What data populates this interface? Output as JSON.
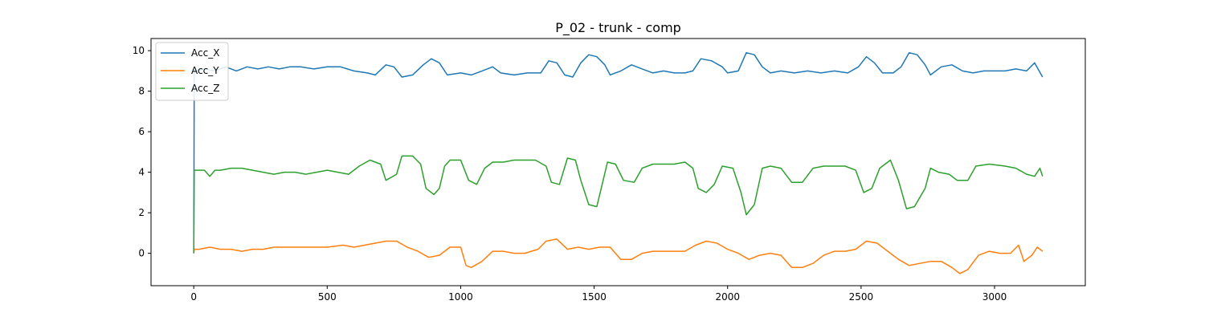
{
  "chart_data": {
    "type": "line",
    "title": "P_02 - trunk - comp",
    "xlabel": "",
    "ylabel": "",
    "xlim": [
      -160,
      3340
    ],
    "ylim": [
      -1.6,
      10.6
    ],
    "x_ticks": [
      0,
      500,
      1000,
      1500,
      2000,
      2500,
      3000
    ],
    "y_ticks": [
      0,
      2,
      4,
      6,
      8,
      10
    ],
    "grid": false,
    "legend": "top-left",
    "series": [
      {
        "name": "Acc_X",
        "color": "#1f77b4",
        "points": [
          [
            0,
            0.0
          ],
          [
            2,
            9.1
          ],
          [
            10,
            9.0
          ],
          [
            40,
            9.1
          ],
          [
            80,
            9.0
          ],
          [
            120,
            9.2
          ],
          [
            160,
            9.0
          ],
          [
            200,
            9.2
          ],
          [
            240,
            9.1
          ],
          [
            280,
            9.2
          ],
          [
            320,
            9.1
          ],
          [
            360,
            9.2
          ],
          [
            400,
            9.2
          ],
          [
            450,
            9.1
          ],
          [
            500,
            9.2
          ],
          [
            550,
            9.2
          ],
          [
            600,
            9.0
          ],
          [
            650,
            8.9
          ],
          [
            680,
            8.8
          ],
          [
            720,
            9.3
          ],
          [
            750,
            9.2
          ],
          [
            780,
            8.7
          ],
          [
            820,
            8.8
          ],
          [
            860,
            9.3
          ],
          [
            890,
            9.6
          ],
          [
            920,
            9.4
          ],
          [
            950,
            8.8
          ],
          [
            1000,
            8.9
          ],
          [
            1040,
            8.8
          ],
          [
            1080,
            9.0
          ],
          [
            1120,
            9.2
          ],
          [
            1150,
            8.9
          ],
          [
            1200,
            8.8
          ],
          [
            1250,
            8.9
          ],
          [
            1300,
            8.9
          ],
          [
            1330,
            9.5
          ],
          [
            1360,
            9.4
          ],
          [
            1390,
            8.8
          ],
          [
            1420,
            8.7
          ],
          [
            1450,
            9.4
          ],
          [
            1480,
            9.8
          ],
          [
            1510,
            9.7
          ],
          [
            1540,
            9.3
          ],
          [
            1560,
            8.8
          ],
          [
            1600,
            9.0
          ],
          [
            1640,
            9.3
          ],
          [
            1680,
            9.1
          ],
          [
            1720,
            8.9
          ],
          [
            1760,
            9.0
          ],
          [
            1800,
            8.9
          ],
          [
            1840,
            8.9
          ],
          [
            1870,
            9.0
          ],
          [
            1900,
            9.6
          ],
          [
            1940,
            9.5
          ],
          [
            1980,
            9.2
          ],
          [
            2000,
            8.9
          ],
          [
            2040,
            9.0
          ],
          [
            2070,
            9.9
          ],
          [
            2100,
            9.8
          ],
          [
            2130,
            9.2
          ],
          [
            2160,
            8.9
          ],
          [
            2200,
            9.0
          ],
          [
            2250,
            8.9
          ],
          [
            2300,
            9.0
          ],
          [
            2350,
            8.9
          ],
          [
            2400,
            9.0
          ],
          [
            2450,
            8.9
          ],
          [
            2490,
            9.2
          ],
          [
            2520,
            9.7
          ],
          [
            2550,
            9.4
          ],
          [
            2580,
            8.9
          ],
          [
            2620,
            8.9
          ],
          [
            2650,
            9.2
          ],
          [
            2680,
            9.9
          ],
          [
            2710,
            9.8
          ],
          [
            2740,
            9.3
          ],
          [
            2760,
            8.8
          ],
          [
            2800,
            9.2
          ],
          [
            2840,
            9.3
          ],
          [
            2880,
            9.0
          ],
          [
            2920,
            8.9
          ],
          [
            2960,
            9.0
          ],
          [
            3000,
            9.0
          ],
          [
            3040,
            9.0
          ],
          [
            3080,
            9.1
          ],
          [
            3120,
            9.0
          ],
          [
            3150,
            9.4
          ],
          [
            3180,
            8.7
          ]
        ]
      },
      {
        "name": "Acc_Y",
        "color": "#ff7f0e",
        "points": [
          [
            0,
            0.0
          ],
          [
            2,
            0.2
          ],
          [
            20,
            0.2
          ],
          [
            60,
            0.3
          ],
          [
            100,
            0.2
          ],
          [
            140,
            0.2
          ],
          [
            180,
            0.1
          ],
          [
            220,
            0.2
          ],
          [
            260,
            0.2
          ],
          [
            300,
            0.3
          ],
          [
            340,
            0.3
          ],
          [
            400,
            0.3
          ],
          [
            450,
            0.3
          ],
          [
            500,
            0.3
          ],
          [
            560,
            0.4
          ],
          [
            600,
            0.3
          ],
          [
            640,
            0.4
          ],
          [
            680,
            0.5
          ],
          [
            720,
            0.6
          ],
          [
            760,
            0.6
          ],
          [
            800,
            0.3
          ],
          [
            840,
            0.1
          ],
          [
            880,
            -0.2
          ],
          [
            920,
            -0.1
          ],
          [
            960,
            0.3
          ],
          [
            1000,
            0.3
          ],
          [
            1020,
            -0.6
          ],
          [
            1040,
            -0.7
          ],
          [
            1080,
            -0.4
          ],
          [
            1120,
            0.1
          ],
          [
            1160,
            0.1
          ],
          [
            1200,
            0.0
          ],
          [
            1240,
            0.0
          ],
          [
            1290,
            0.2
          ],
          [
            1320,
            0.6
          ],
          [
            1360,
            0.7
          ],
          [
            1400,
            0.2
          ],
          [
            1440,
            0.3
          ],
          [
            1480,
            0.2
          ],
          [
            1520,
            0.3
          ],
          [
            1560,
            0.3
          ],
          [
            1600,
            -0.3
          ],
          [
            1640,
            -0.3
          ],
          [
            1680,
            0.0
          ],
          [
            1720,
            0.1
          ],
          [
            1760,
            0.1
          ],
          [
            1800,
            0.1
          ],
          [
            1840,
            0.1
          ],
          [
            1880,
            0.4
          ],
          [
            1920,
            0.6
          ],
          [
            1960,
            0.5
          ],
          [
            2000,
            0.2
          ],
          [
            2040,
            0.0
          ],
          [
            2080,
            -0.3
          ],
          [
            2120,
            -0.1
          ],
          [
            2160,
            0.0
          ],
          [
            2200,
            -0.1
          ],
          [
            2240,
            -0.7
          ],
          [
            2280,
            -0.7
          ],
          [
            2320,
            -0.5
          ],
          [
            2360,
            -0.1
          ],
          [
            2400,
            0.1
          ],
          [
            2440,
            0.1
          ],
          [
            2480,
            0.2
          ],
          [
            2520,
            0.6
          ],
          [
            2560,
            0.5
          ],
          [
            2600,
            0.1
          ],
          [
            2640,
            -0.3
          ],
          [
            2680,
            -0.6
          ],
          [
            2720,
            -0.5
          ],
          [
            2760,
            -0.4
          ],
          [
            2800,
            -0.4
          ],
          [
            2840,
            -0.7
          ],
          [
            2870,
            -1.0
          ],
          [
            2900,
            -0.8
          ],
          [
            2940,
            -0.1
          ],
          [
            2980,
            0.1
          ],
          [
            3020,
            0.0
          ],
          [
            3060,
            0.0
          ],
          [
            3090,
            0.4
          ],
          [
            3110,
            -0.4
          ],
          [
            3140,
            -0.1
          ],
          [
            3160,
            0.3
          ],
          [
            3180,
            0.1
          ]
        ]
      },
      {
        "name": "Acc_Z",
        "color": "#2ca02c",
        "points": [
          [
            0,
            0.0
          ],
          [
            2,
            4.1
          ],
          [
            40,
            4.1
          ],
          [
            60,
            3.8
          ],
          [
            80,
            4.1
          ],
          [
            100,
            4.1
          ],
          [
            140,
            4.2
          ],
          [
            180,
            4.2
          ],
          [
            220,
            4.1
          ],
          [
            260,
            4.0
          ],
          [
            300,
            3.9
          ],
          [
            340,
            4.0
          ],
          [
            380,
            4.0
          ],
          [
            420,
            3.9
          ],
          [
            460,
            4.0
          ],
          [
            500,
            4.1
          ],
          [
            540,
            4.0
          ],
          [
            580,
            3.9
          ],
          [
            620,
            4.3
          ],
          [
            660,
            4.6
          ],
          [
            700,
            4.4
          ],
          [
            720,
            3.6
          ],
          [
            760,
            3.9
          ],
          [
            780,
            4.8
          ],
          [
            820,
            4.8
          ],
          [
            850,
            4.4
          ],
          [
            870,
            3.2
          ],
          [
            900,
            2.9
          ],
          [
            920,
            3.2
          ],
          [
            940,
            4.3
          ],
          [
            960,
            4.6
          ],
          [
            1000,
            4.6
          ],
          [
            1030,
            3.6
          ],
          [
            1060,
            3.4
          ],
          [
            1090,
            4.2
          ],
          [
            1120,
            4.5
          ],
          [
            1160,
            4.5
          ],
          [
            1200,
            4.6
          ],
          [
            1240,
            4.6
          ],
          [
            1280,
            4.6
          ],
          [
            1320,
            4.3
          ],
          [
            1340,
            3.5
          ],
          [
            1370,
            3.4
          ],
          [
            1400,
            4.7
          ],
          [
            1430,
            4.6
          ],
          [
            1450,
            3.6
          ],
          [
            1480,
            2.4
          ],
          [
            1510,
            2.3
          ],
          [
            1530,
            3.4
          ],
          [
            1550,
            4.5
          ],
          [
            1580,
            4.4
          ],
          [
            1610,
            3.6
          ],
          [
            1650,
            3.5
          ],
          [
            1680,
            4.2
          ],
          [
            1720,
            4.4
          ],
          [
            1760,
            4.4
          ],
          [
            1800,
            4.4
          ],
          [
            1840,
            4.5
          ],
          [
            1870,
            4.2
          ],
          [
            1890,
            3.2
          ],
          [
            1920,
            3.0
          ],
          [
            1950,
            3.4
          ],
          [
            1980,
            4.3
          ],
          [
            2020,
            4.2
          ],
          [
            2050,
            3.0
          ],
          [
            2070,
            1.9
          ],
          [
            2100,
            2.4
          ],
          [
            2130,
            4.2
          ],
          [
            2160,
            4.3
          ],
          [
            2200,
            4.2
          ],
          [
            2240,
            3.5
          ],
          [
            2280,
            3.5
          ],
          [
            2320,
            4.2
          ],
          [
            2360,
            4.3
          ],
          [
            2400,
            4.3
          ],
          [
            2440,
            4.3
          ],
          [
            2480,
            4.1
          ],
          [
            2510,
            3.0
          ],
          [
            2540,
            3.2
          ],
          [
            2570,
            4.2
          ],
          [
            2610,
            4.6
          ],
          [
            2640,
            3.6
          ],
          [
            2670,
            2.2
          ],
          [
            2700,
            2.3
          ],
          [
            2740,
            3.2
          ],
          [
            2760,
            4.2
          ],
          [
            2790,
            4.0
          ],
          [
            2830,
            3.9
          ],
          [
            2860,
            3.6
          ],
          [
            2900,
            3.6
          ],
          [
            2930,
            4.3
          ],
          [
            2980,
            4.4
          ],
          [
            3040,
            4.3
          ],
          [
            3080,
            4.2
          ],
          [
            3120,
            3.9
          ],
          [
            3150,
            3.8
          ],
          [
            3170,
            4.2
          ],
          [
            3180,
            3.8
          ]
        ]
      }
    ]
  }
}
